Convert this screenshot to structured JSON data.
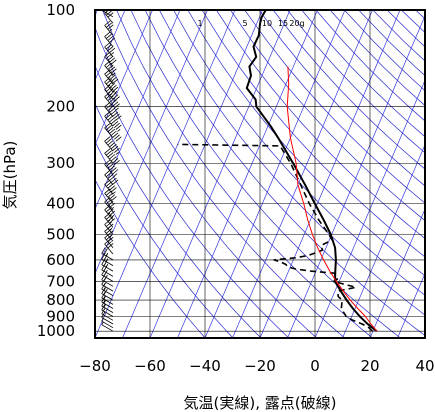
{
  "chart_data": {
    "type": "line",
    "subtype": "skew-T log-p thermodynamic diagram",
    "xlabel": "気温(実線), 露点(破線)",
    "ylabel": "気圧(hPa)",
    "x_ticks": [
      -80,
      -60,
      -40,
      -20,
      0,
      20,
      40
    ],
    "y_ticks": [
      100,
      200,
      300,
      400,
      500,
      600,
      700,
      800,
      900,
      1000
    ],
    "xlim": [
      -80,
      40
    ],
    "ylim": [
      1050,
      100
    ],
    "y_scale": "log",
    "grid": true,
    "mixing_ratio_labels": [
      "1",
      "5",
      "10",
      "15",
      "20g"
    ],
    "colors": {
      "temperature": "#000000",
      "dewpoint": "#000000",
      "parcel": "#ff0000",
      "dry_adiabats": "#2a2ad0",
      "isotherms": "#3a3ae0",
      "grid": "#000000"
    },
    "series": [
      {
        "name": "気温",
        "style": "solid",
        "pressure": [
          1000,
          975,
          950,
          925,
          900,
          850,
          800,
          750,
          700,
          650,
          600,
          550,
          500,
          450,
          400,
          350,
          300,
          250,
          230,
          200,
          190,
          175,
          160,
          150,
          140,
          130,
          120,
          110,
          105,
          100
        ],
        "values": [
          21.4,
          19.2,
          17.0,
          15.0,
          13.0,
          9.2,
          5.6,
          2.1,
          -1.5,
          -3.0,
          -4.5,
          -6.7,
          -10.3,
          -15.2,
          -21.0,
          -27.4,
          -35.1,
          -44.5,
          -49.0,
          -57.2,
          -58.6,
          -63.6,
          -64.0,
          -66.0,
          -65.0,
          -67.6,
          -67.4,
          -68.8,
          -69.2,
          -68.8
        ]
      },
      {
        "name": "露点",
        "style": "dashed",
        "pressure": [
          1000,
          975,
          950,
          925,
          900,
          850,
          800,
          780,
          750,
          730,
          700,
          690,
          660,
          650,
          640,
          630,
          620,
          610,
          600,
          590,
          580,
          560,
          540,
          520,
          500,
          450,
          400,
          350,
          300,
          265,
          262
        ],
        "values": [
          19.8,
          18.0,
          15.0,
          11.0,
          8.0,
          5.0,
          4.0,
          2.0,
          1.0,
          7.0,
          -2.0,
          -1.0,
          -3.0,
          -12.0,
          -18.0,
          -21.0,
          -22.0,
          -24.0,
          -27.0,
          -19.0,
          -15.0,
          -11.0,
          -12.0,
          -9.0,
          -11.0,
          -17.0,
          -23.0,
          -29.0,
          -36.0,
          -42.5,
          -80.0
        ]
      },
      {
        "name": "",
        "style": "solid-red",
        "pressure": [
          1000,
          950,
          900,
          850,
          800,
          750,
          700,
          650,
          600,
          550,
          500,
          450,
          400,
          350,
          300,
          250,
          200,
          170,
          150
        ],
        "values": [
          21.4,
          18.2,
          15.0,
          11.0,
          6.9,
          3.0,
          -1.0,
          -5.0,
          -9.0,
          -13.0,
          -17.0,
          -21.0,
          -25.0,
          -30.0,
          -34.0,
          -40.0,
          -46.0,
          -49.0,
          -52.0
        ]
      }
    ],
    "wind_barbs": {
      "pressure": [
        1000,
        975,
        950,
        925,
        900,
        875,
        850,
        825,
        800,
        775,
        750,
        725,
        700,
        675,
        650,
        625,
        600,
        575,
        550,
        525,
        500,
        475,
        450,
        425,
        400,
        375,
        350,
        325,
        300,
        275,
        250,
        230,
        215,
        200,
        190,
        180,
        170,
        160,
        150,
        140,
        130,
        120,
        110,
        105
      ],
      "speed_kt": [
        5,
        5,
        10,
        10,
        10,
        15,
        15,
        15,
        20,
        15,
        15,
        20,
        20,
        20,
        25,
        25,
        25,
        30,
        30,
        35,
        35,
        40,
        45,
        45,
        50,
        55,
        60,
        65,
        70,
        75,
        80,
        85,
        80,
        75,
        70,
        65,
        60,
        55,
        50,
        45,
        40,
        35,
        30,
        25
      ]
    }
  }
}
